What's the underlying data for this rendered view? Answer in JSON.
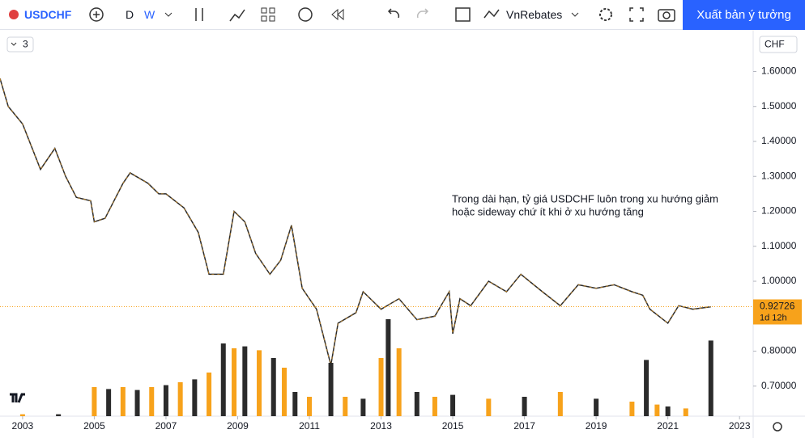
{
  "toolbar": {
    "symbol": "USDCHF",
    "intervals": [
      "D",
      "W"
    ],
    "account": "VnRebates",
    "publish": "Xuất bản ý tưởng"
  },
  "indicator_count": "3",
  "currency": "CHF",
  "chart_data": {
    "type": "line",
    "annotation": [
      "Trong dài hạn, tỷ giá USDCHF luôn trong xu hướng giảm",
      "hoặc sideway chứ ít khi ở xu hướng tăng"
    ],
    "series": [
      {
        "color": "#2b2b2b",
        "x": [
          2002.37,
          2002.6,
          2003.0,
          2003.5,
          2003.9,
          2004.2,
          2004.5,
          2004.9,
          2005.0,
          2005.3,
          2005.8,
          2006.0,
          2006.5,
          2006.8,
          2007.0,
          2007.5,
          2007.9,
          2008.2,
          2008.6,
          2008.9,
          2009.2,
          2009.5,
          2009.9,
          2010.2,
          2010.5,
          2010.8,
          2011.2,
          2011.6,
          2011.8,
          2012.3,
          2012.5,
          2013.0,
          2013.5,
          2014.0,
          2014.5,
          2014.9,
          2015.0,
          2015.2,
          2015.5,
          2016.0,
          2016.5,
          2016.9,
          2017.5,
          2018.0,
          2018.5,
          2019.0,
          2019.5,
          2020.0,
          2020.3,
          2020.5,
          2021.0,
          2021.3,
          2021.7,
          2022.2
        ],
        "values": [
          1.58,
          1.5,
          1.45,
          1.32,
          1.38,
          1.3,
          1.24,
          1.23,
          1.17,
          1.18,
          1.28,
          1.31,
          1.28,
          1.25,
          1.25,
          1.21,
          1.14,
          1.02,
          1.02,
          1.2,
          1.17,
          1.08,
          1.02,
          1.06,
          1.16,
          0.98,
          0.92,
          0.76,
          0.88,
          0.91,
          0.97,
          0.92,
          0.95,
          0.89,
          0.9,
          0.97,
          0.85,
          0.95,
          0.93,
          1.0,
          0.97,
          1.02,
          0.97,
          0.93,
          0.99,
          0.98,
          0.99,
          0.97,
          0.96,
          0.92,
          0.88,
          0.93,
          0.92,
          0.927
        ]
      },
      {
        "color": "#f7a21b",
        "axis": "y2",
        "x": [
          2003.0,
          2004.0,
          2005.0,
          2005.4,
          2005.8,
          2006.2,
          2006.6,
          2007.0,
          2007.4,
          2007.8,
          2008.2,
          2008.6,
          2008.9,
          2009.2,
          2009.6,
          2010.0,
          2010.3,
          2010.6,
          2011.0,
          2011.6,
          2012.0,
          2012.5,
          2013.0,
          2013.2,
          2013.5,
          2014.0,
          2014.5,
          2015.0,
          2016.0,
          2017.0,
          2018.0,
          2019.0,
          2020.0,
          2020.4,
          2020.7,
          2021.0,
          2021.5,
          2022.2
        ],
        "values": [
          2,
          2,
          30,
          28,
          30,
          27,
          30,
          32,
          35,
          38,
          45,
          75,
          70,
          72,
          68,
          60,
          50,
          25,
          20,
          55,
          20,
          18,
          60,
          100,
          70,
          25,
          20,
          22,
          18,
          20,
          25,
          18,
          15,
          58,
          12,
          10,
          8,
          78
        ]
      }
    ],
    "xlim": [
      2002.37,
      2023.38
    ],
    "xticks": [
      2003,
      2005,
      2007,
      2009,
      2011,
      2013,
      2015,
      2017,
      2019,
      2021,
      2023
    ],
    "ylim": [
      0.614,
      1.719
    ],
    "yticks": [
      {
        "value": 0.7,
        "label": "0.70000"
      },
      {
        "value": 0.8,
        "label": "0.80000"
      },
      {
        "value": 0.9,
        "label": "0.90000"
      },
      {
        "value": 1.0,
        "label": "1.00000"
      },
      {
        "value": 1.1,
        "label": "1.10000"
      },
      {
        "value": 1.2,
        "label": "1.20000"
      },
      {
        "value": 1.3,
        "label": "1.30000"
      },
      {
        "value": 1.4,
        "label": "1.40000"
      },
      {
        "value": 1.5,
        "label": "1.50000"
      },
      {
        "value": 1.6,
        "label": "1.60000"
      }
    ],
    "y2lim": [
      0,
      100
    ],
    "last_price": 0.92726,
    "countdown": "1d 12h"
  }
}
